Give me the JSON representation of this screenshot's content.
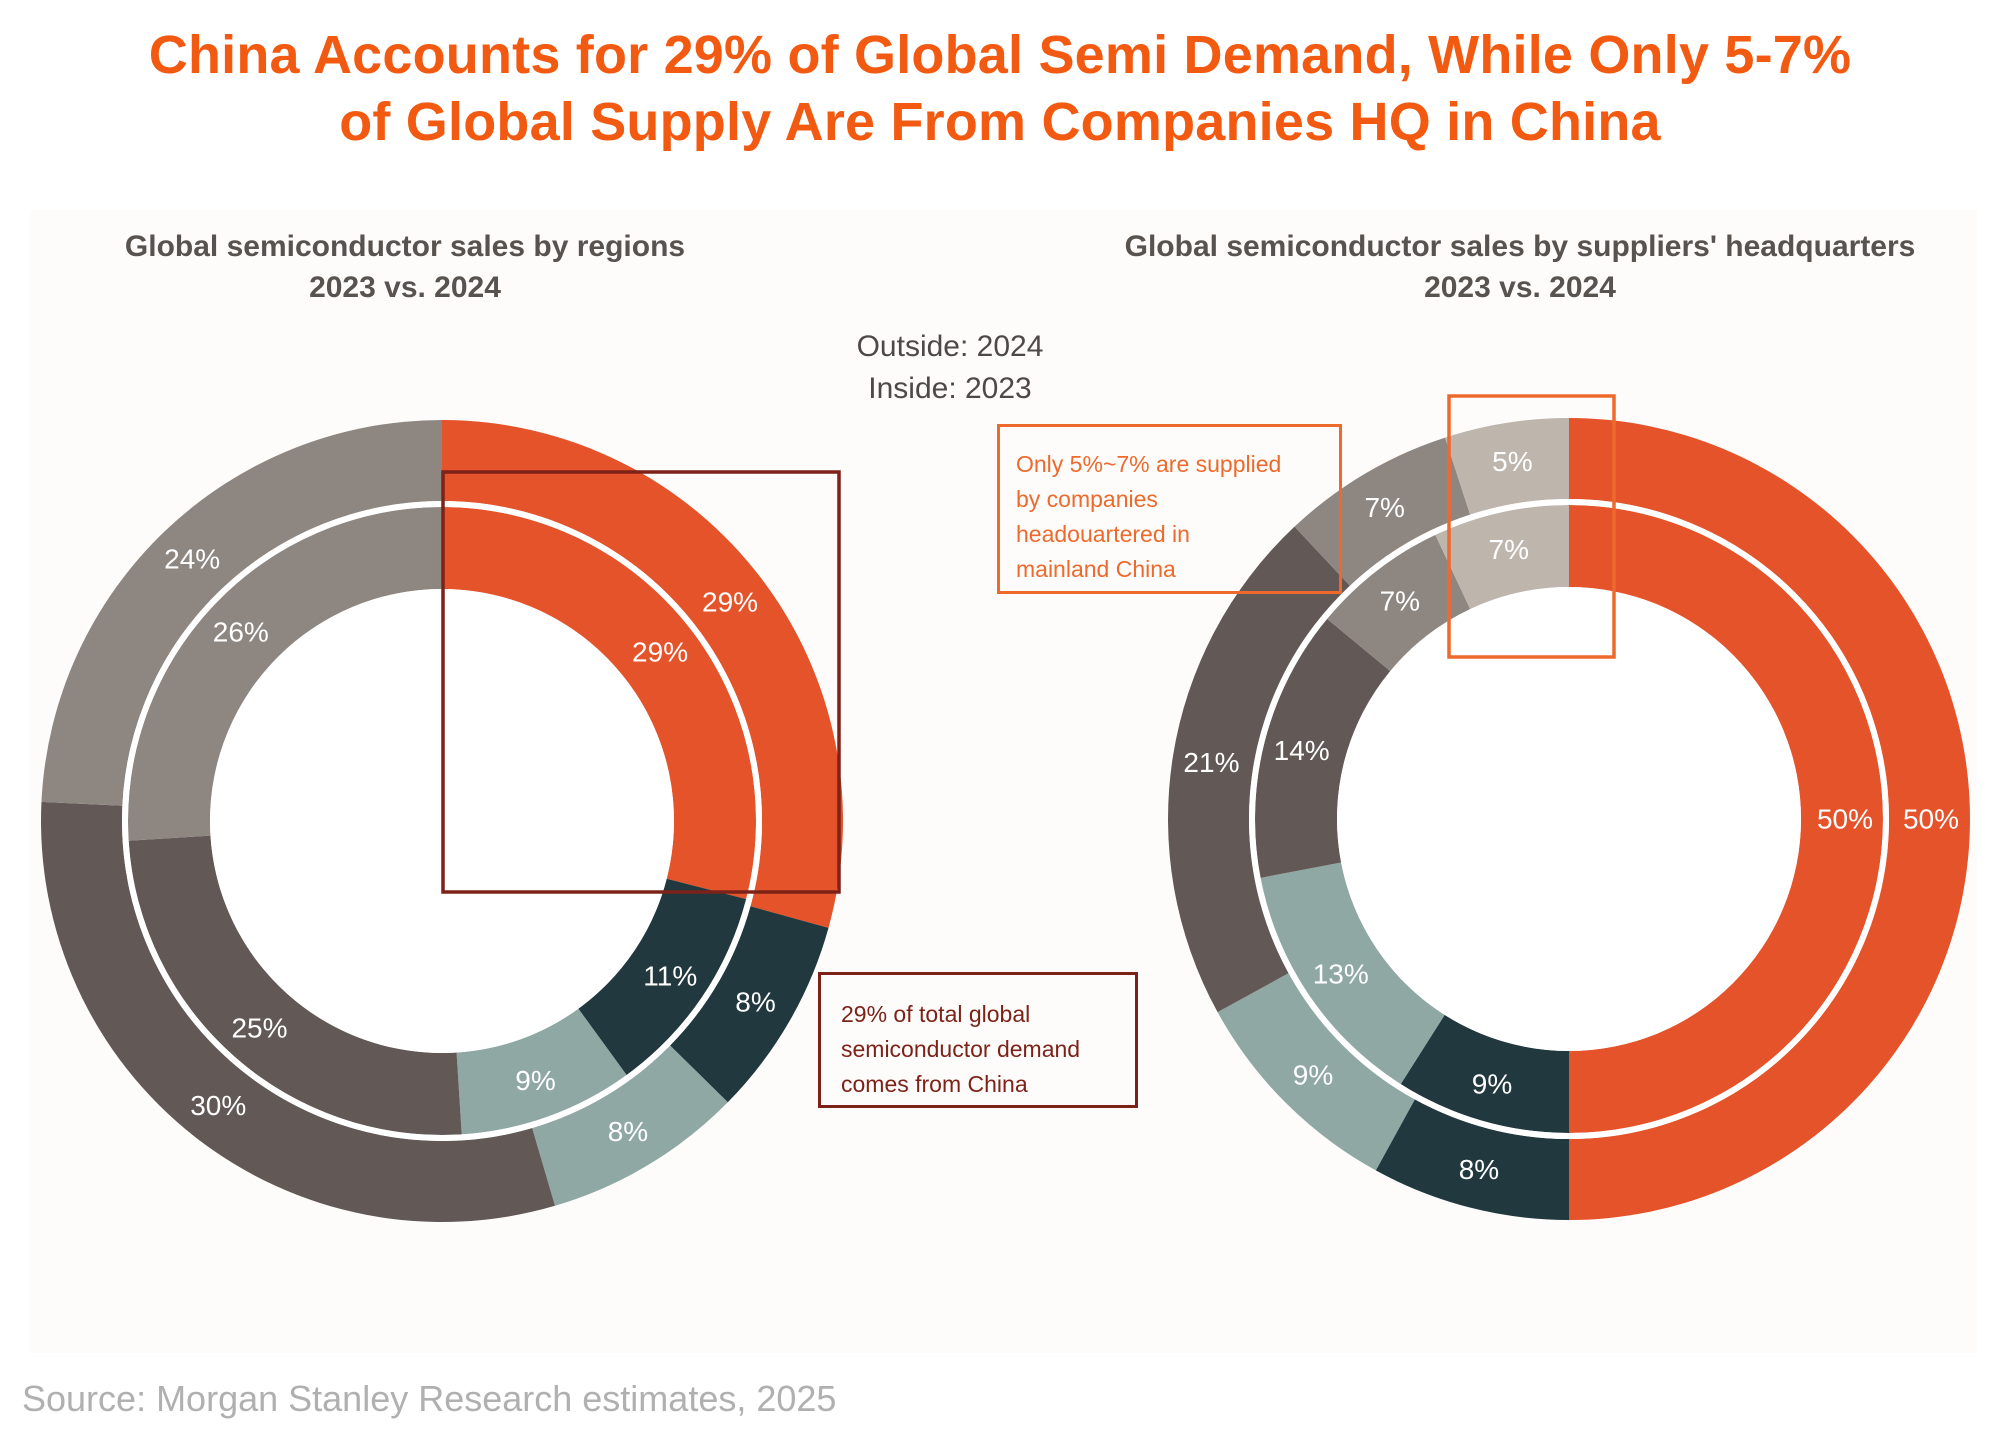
{
  "title_line1": "China Accounts for 29% of Global Semi Demand, While Only 5-7%",
  "title_line2": "of Global Supply Are From Companies HQ in China",
  "legend_outside": "Outside: 2024",
  "legend_inside": "Inside: 2023",
  "source": "Source: Morgan Stanley Research estimates, 2025",
  "colors": {
    "china": "#E5532A",
    "navy": "#21383E",
    "teal": "#8FA8A4",
    "dark_gray": "#625956",
    "mid_gray": "#8E8681",
    "light_beige": "#BEB5AD",
    "demand_highlight": "#7D2218",
    "supply_highlight": "#EE6A2C"
  },
  "callouts": {
    "demand": [
      "29% of total global",
      "semiconductor demand",
      "comes from China"
    ],
    "supply": [
      "Only 5%~7% are supplied",
      "by companies",
      "headouartered in",
      "mainland China"
    ]
  },
  "chart_data": [
    {
      "type": "pie",
      "variant": "double-donut",
      "title_line1": "Global semiconductor sales by regions",
      "title_line2": "2023 vs. 2024",
      "start": "12 o'clock, clockwise",
      "series": [
        {
          "name": "2024",
          "ring": "outside",
          "slices": [
            {
              "color_key": "china",
              "value": 29,
              "label": "29%"
            },
            {
              "color_key": "navy",
              "value": 8,
              "label": "8%"
            },
            {
              "color_key": "teal",
              "value": 8,
              "label": "8%"
            },
            {
              "color_key": "dark_gray",
              "value": 30,
              "label": "30%"
            },
            {
              "color_key": "mid_gray",
              "value": 24,
              "label": "24%"
            }
          ]
        },
        {
          "name": "2023",
          "ring": "inside",
          "slices": [
            {
              "color_key": "china",
              "value": 29,
              "label": "29%"
            },
            {
              "color_key": "navy",
              "value": 11,
              "label": "11%"
            },
            {
              "color_key": "teal",
              "value": 9,
              "label": "9%"
            },
            {
              "color_key": "dark_gray",
              "value": 25,
              "label": "25%"
            },
            {
              "color_key": "mid_gray",
              "value": 26,
              "label": "26%"
            }
          ]
        }
      ],
      "highlight": "China slice (29%) outlined with dark red box"
    },
    {
      "type": "pie",
      "variant": "double-donut",
      "title_line1": "Global semiconductor sales by suppliers' headquarters",
      "title_line2": "2023 vs. 2024",
      "start": "12 o'clock, clockwise",
      "series": [
        {
          "name": "2024",
          "ring": "outside",
          "slices": [
            {
              "color_key": "china",
              "value": 50,
              "label": "50%"
            },
            {
              "color_key": "navy",
              "value": 8,
              "label": "8%"
            },
            {
              "color_key": "teal",
              "value": 9,
              "label": "9%"
            },
            {
              "color_key": "dark_gray",
              "value": 21,
              "label": "21%"
            },
            {
              "color_key": "mid_gray",
              "value": 7,
              "label": "7%"
            },
            {
              "color_key": "light_beige",
              "value": 5,
              "label": "5%"
            }
          ]
        },
        {
          "name": "2023",
          "ring": "inside",
          "slices": [
            {
              "color_key": "china",
              "value": 50,
              "label": "50%"
            },
            {
              "color_key": "navy",
              "value": 9,
              "label": "9%"
            },
            {
              "color_key": "teal",
              "value": 13,
              "label": "13%"
            },
            {
              "color_key": "dark_gray",
              "value": 14,
              "label": "14%"
            },
            {
              "color_key": "mid_gray",
              "value": 7,
              "label": "7%"
            },
            {
              "color_key": "light_beige",
              "value": 7,
              "label": "7%"
            }
          ]
        }
      ],
      "highlight": "Mainland China HQ slice (5%-7%) outlined with orange box"
    }
  ]
}
